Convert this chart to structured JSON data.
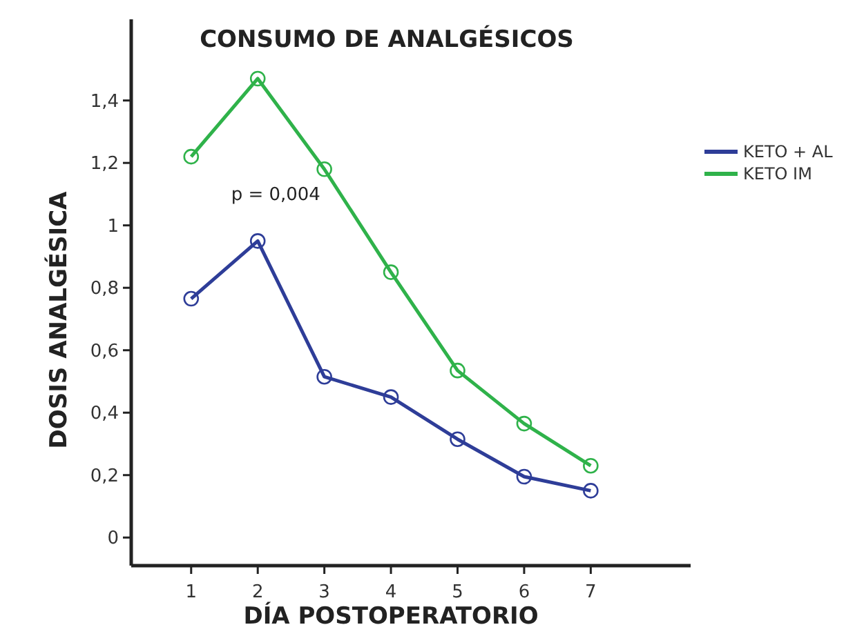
{
  "chart_data": {
    "type": "line",
    "title": "CONSUMO DE ANALGÉSICOS",
    "xlabel": "DÍA POSTOPERATORIO",
    "ylabel": "DOSIS ANALGÉSICA",
    "x": [
      1,
      2,
      3,
      4,
      5,
      6,
      7
    ],
    "series": [
      {
        "name": "KETO + AL",
        "color": "#2e3d98",
        "values": [
          0.765,
          0.95,
          0.515,
          0.45,
          0.315,
          0.195,
          0.15
        ]
      },
      {
        "name": "KETO IM",
        "color": "#2fb24a",
        "values": [
          1.22,
          1.47,
          1.18,
          0.85,
          0.535,
          0.365,
          0.23
        ]
      }
    ],
    "xlim": [
      0.1,
      8.5
    ],
    "xticks": [
      1,
      2,
      3,
      4,
      5,
      6,
      7
    ],
    "ylim": [
      -0.09,
      1.66
    ],
    "yticks": [
      0,
      {
        "value": 0.2,
        "label": "0,2"
      },
      {
        "value": 0.4,
        "label": "0,4"
      },
      {
        "value": 0.6,
        "label": "0,6"
      },
      {
        "value": 0.8,
        "label": "0,8"
      },
      1,
      {
        "value": 1.2,
        "label": "1,2"
      },
      {
        "value": 1.4,
        "label": "1,4"
      }
    ],
    "annotations": [
      "p = 0,004"
    ],
    "marker": "circle",
    "line_style": "solid",
    "grid": false,
    "legend": "right"
  }
}
